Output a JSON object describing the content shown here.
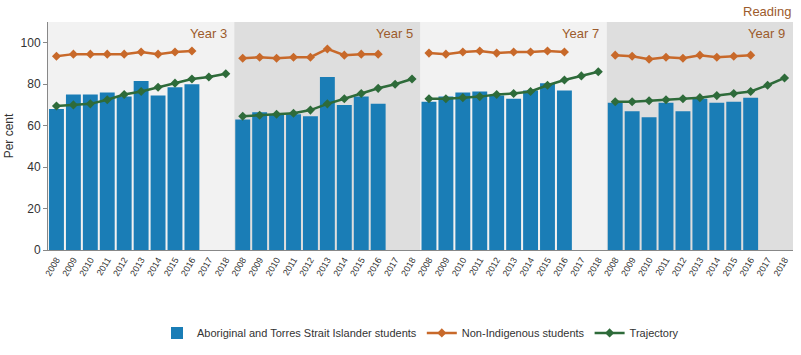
{
  "chart_data": {
    "type": "bar",
    "title": "Reading",
    "ylabel": "Per cent",
    "ylim": [
      0,
      110
    ],
    "yticks": [
      0,
      20,
      40,
      60,
      80,
      100
    ],
    "grid": false,
    "legend": "bottom",
    "panels": [
      {
        "title": "Year 3",
        "categories": [
          "2008",
          "2009",
          "2010",
          "2011",
          "2012",
          "2013",
          "2014",
          "2015",
          "2016",
          "2017",
          "2018"
        ],
        "series": [
          {
            "name": "Aboriginal and Torres Strait Islander students",
            "type": "bar",
            "color": "#1a7db6",
            "values": [
              68,
              75,
              75,
              76,
              74,
              81.5,
              74.5,
              78.5,
              80,
              null,
              null
            ]
          },
          {
            "name": "Non-Indigenous students",
            "type": "line",
            "marker": "diamond",
            "line_style": "solid",
            "color": "#c8692a",
            "values": [
              93.5,
              94.5,
              94.5,
              94.5,
              94.5,
              95.5,
              94.5,
              95.5,
              96,
              null,
              null
            ]
          },
          {
            "name": "Trajectory",
            "type": "line",
            "marker": "diamond",
            "line_style": "solid",
            "color": "#2e6b3a",
            "values": [
              69.5,
              70,
              70.5,
              72.5,
              75,
              76.5,
              78.5,
              80.5,
              82.5,
              83.5,
              85
            ]
          }
        ]
      },
      {
        "title": "Year 5",
        "categories": [
          "2008",
          "2009",
          "2010",
          "2011",
          "2012",
          "2013",
          "2014",
          "2015",
          "2016",
          "2017",
          "2018"
        ],
        "series": [
          {
            "name": "Aboriginal and Torres Strait Islander students",
            "type": "bar",
            "color": "#1a7db6",
            "values": [
              63,
              66.5,
              65.5,
              65.5,
              64.5,
              83.5,
              70,
              74,
              70.5,
              null,
              null
            ]
          },
          {
            "name": "Non-Indigenous students",
            "type": "line",
            "marker": "diamond",
            "line_style": "solid",
            "color": "#c8692a",
            "values": [
              92.5,
              93,
              92.5,
              93,
              93,
              97,
              94,
              94.5,
              94.5,
              null,
              null
            ]
          },
          {
            "name": "Trajectory",
            "type": "line",
            "marker": "diamond",
            "line_style": "solid",
            "color": "#2e6b3a",
            "values": [
              64.5,
              65,
              65.5,
              66,
              67.5,
              70.5,
              73,
              75.5,
              78,
              80,
              82.5
            ]
          }
        ]
      },
      {
        "title": "Year 7",
        "categories": [
          "2008",
          "2009",
          "2010",
          "2011",
          "2012",
          "2013",
          "2014",
          "2015",
          "2016",
          "2017",
          "2018"
        ],
        "series": [
          {
            "name": "Aboriginal and Torres Strait Islander students",
            "type": "bar",
            "color": "#1a7db6",
            "values": [
              71.5,
              74,
              76,
              76.5,
              74.5,
              73,
              77,
              80.5,
              77,
              null,
              null
            ]
          },
          {
            "name": "Non-Indigenous students",
            "type": "line",
            "marker": "diamond",
            "line_style": "solid",
            "color": "#c8692a",
            "values": [
              95,
              94.5,
              95.5,
              96,
              95,
              95.5,
              95.5,
              96,
              95.5,
              null,
              null
            ]
          },
          {
            "name": "Trajectory",
            "type": "line",
            "marker": "diamond",
            "line_style": "solid",
            "color": "#2e6b3a",
            "values": [
              73,
              73,
              73.5,
              74,
              75,
              75.5,
              76.5,
              79.5,
              82,
              84,
              86
            ]
          }
        ]
      },
      {
        "title": "Year 9",
        "categories": [
          "2008",
          "2009",
          "2010",
          "2011",
          "2012",
          "2013",
          "2014",
          "2015",
          "2016",
          "2017",
          "2018"
        ],
        "series": [
          {
            "name": "Aboriginal and Torres Strait Islander students",
            "type": "bar",
            "color": "#1a7db6",
            "values": [
              71,
              67,
              64,
              71,
              67,
              73,
              71,
              71.5,
              73.5,
              null,
              null
            ]
          },
          {
            "name": "Non-Indigenous students",
            "type": "line",
            "marker": "diamond",
            "line_style": "solid",
            "color": "#c8692a",
            "values": [
              94,
              93.5,
              92,
              93,
              92.5,
              94,
              93,
              93.5,
              94,
              null,
              null
            ]
          },
          {
            "name": "Trajectory",
            "type": "line",
            "marker": "diamond",
            "line_style": "solid",
            "color": "#2e6b3a",
            "values": [
              71.5,
              71.5,
              72,
              72.5,
              73,
              73.5,
              74.5,
              75.5,
              76.5,
              79.5,
              83
            ]
          }
        ]
      }
    ]
  }
}
